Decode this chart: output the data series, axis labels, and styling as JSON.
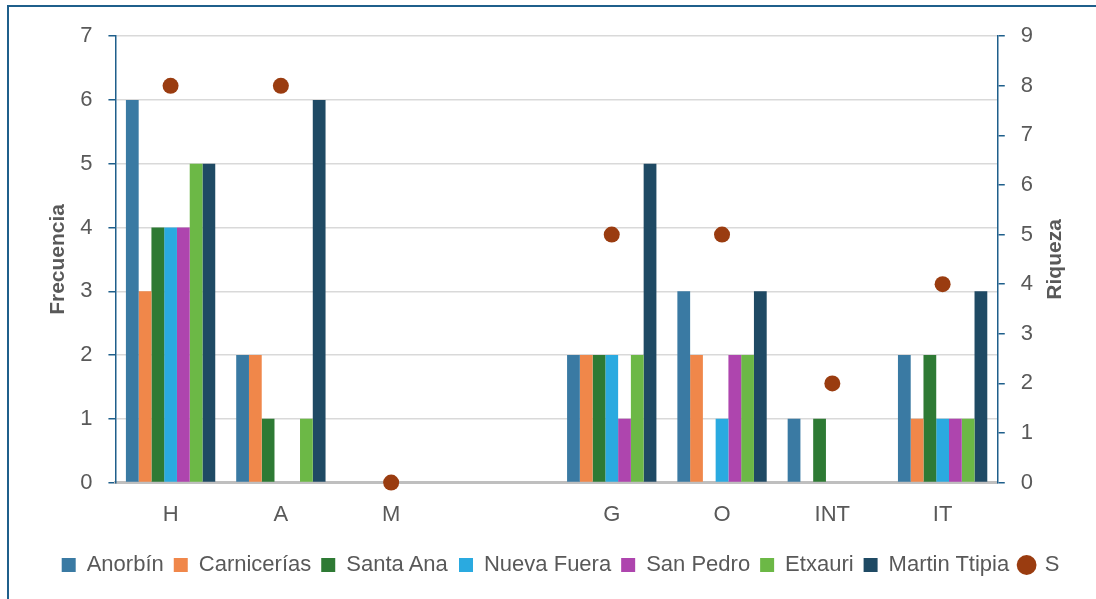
{
  "chart_data": {
    "type": "bar",
    "categories": [
      "H",
      "A",
      "M",
      null,
      "G",
      "O",
      "INT",
      "IT"
    ],
    "series": [
      {
        "name": "Anorbín",
        "color": "#3a7aa3",
        "values": [
          6,
          2,
          0,
          null,
          2,
          3,
          1,
          2
        ]
      },
      {
        "name": "Carnicerías",
        "color": "#f0874a",
        "values": [
          3,
          2,
          0,
          null,
          2,
          2,
          0,
          1
        ]
      },
      {
        "name": "Santa Ana",
        "color": "#2e7a34",
        "values": [
          4,
          1,
          0,
          null,
          2,
          0,
          1,
          2
        ]
      },
      {
        "name": "Nueva Fuera",
        "color": "#2aaae0",
        "values": [
          4,
          0,
          0,
          null,
          2,
          1,
          0,
          1
        ]
      },
      {
        "name": "San Pedro",
        "color": "#ae45ae",
        "values": [
          4,
          0,
          0,
          null,
          1,
          2,
          0,
          1
        ]
      },
      {
        "name": "Etxauri",
        "color": "#6cb846",
        "values": [
          5,
          1,
          0,
          null,
          2,
          2,
          0,
          1
        ]
      },
      {
        "name": "Martin Ttipia",
        "color": "#1f4a64",
        "values": [
          5,
          6,
          0,
          null,
          5,
          3,
          0,
          3
        ]
      },
      {
        "name": "S",
        "type": "scatter",
        "axis": "y2",
        "color": "#9a3c10",
        "values": [
          8,
          8,
          0,
          null,
          5,
          5,
          2,
          4
        ]
      }
    ],
    "ylabel": "Frecuencia",
    "y2label": "Riqueza",
    "ylim": [
      0,
      7
    ],
    "yticks": [
      0,
      1,
      2,
      3,
      4,
      5,
      6,
      7
    ],
    "y2lim": [
      0,
      9
    ],
    "y2ticks": [
      0,
      1,
      2,
      3,
      4,
      5,
      6,
      7,
      8,
      9
    ],
    "grid": "y",
    "legend": "bottom",
    "marker": "circle"
  }
}
